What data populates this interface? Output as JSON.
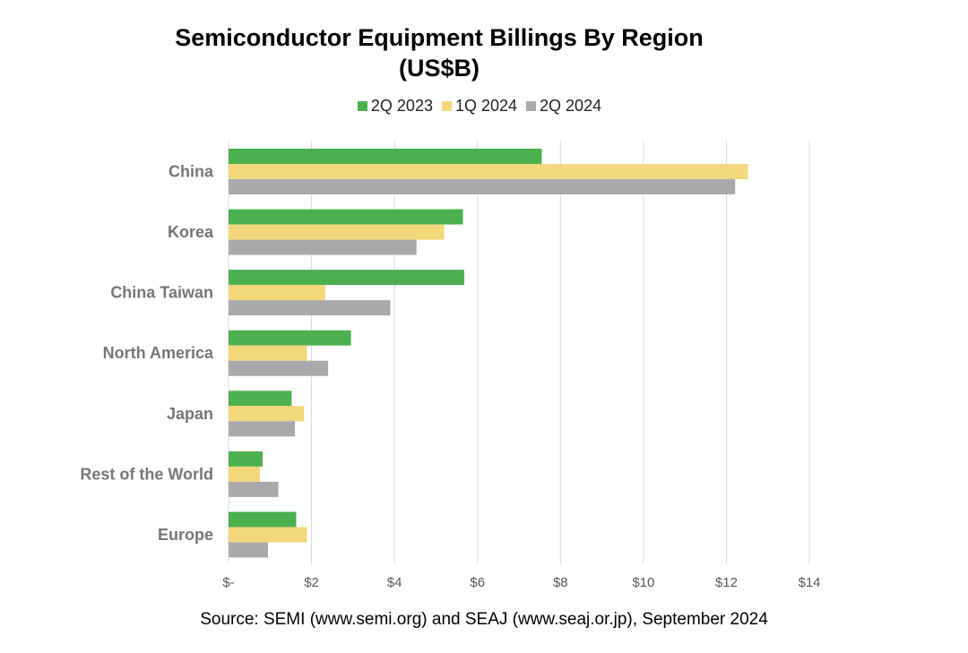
{
  "chart_data": {
    "type": "bar",
    "orientation": "horizontal",
    "title": "Semiconductor Equipment Billings By Region",
    "subtitle": "(US$B)",
    "categories": [
      "China",
      "Korea",
      "China Taiwan",
      "North America",
      "Japan",
      "Rest of the World",
      "Europe"
    ],
    "series": [
      {
        "name": "2Q 2023",
        "color": "#4caf50",
        "values": [
          7.55,
          5.65,
          5.68,
          2.95,
          1.52,
          0.82,
          1.63
        ]
      },
      {
        "name": "1Q 2024",
        "color": "#f5d77b",
        "values": [
          12.52,
          5.2,
          2.33,
          1.89,
          1.82,
          0.76,
          1.89
        ]
      },
      {
        "name": "2Q 2024",
        "color": "#a9a9ac",
        "values": [
          12.21,
          4.53,
          3.9,
          2.4,
          1.6,
          1.2,
          0.95
        ]
      }
    ],
    "xlim": [
      0,
      14
    ],
    "xticks": [
      0,
      2,
      4,
      6,
      8,
      10,
      12,
      14
    ],
    "xtick_labels": [
      "$-",
      "$2",
      "$4",
      "$6",
      "$8",
      "$10",
      "$12",
      "$14"
    ],
    "grid": "vertical",
    "legend_position": "top-center",
    "xlabel": "",
    "ylabel": ""
  },
  "source": "Source: SEMI (www.semi.org) and SEAJ (www.seaj.or.jp), September 2024"
}
